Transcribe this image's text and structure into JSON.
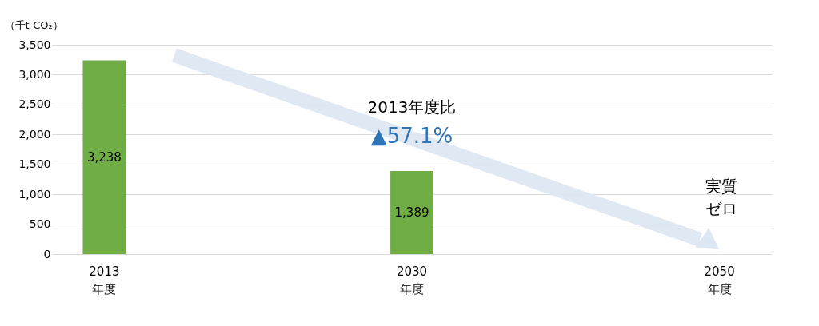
{
  "chart_data": {
    "type": "bar",
    "ylabel": "（千t-CO₂）",
    "categories": [
      "2013\n年度",
      "2030\n年度",
      "2050\n年度"
    ],
    "values": [
      3238,
      1389,
      null
    ],
    "color": "#70ad47",
    "value_labels": [
      "3,238",
      "1,389",
      null
    ],
    "ylim": [
      0,
      3500
    ],
    "yticks": [
      0,
      500,
      {
        "value": 1000,
        "label": "1,000"
      },
      {
        "value": 1500,
        "label": "1,500"
      },
      {
        "value": 2000,
        "label": "2,000"
      },
      {
        "value": 2500,
        "label": "2,500"
      },
      {
        "value": 3000,
        "label": "3,000"
      },
      {
        "value": 3500,
        "label": "3,500"
      }
    ],
    "grid": "y",
    "annotations": [
      "2013年度比",
      "▲57.1%",
      "実質ゼロ"
    ]
  }
}
